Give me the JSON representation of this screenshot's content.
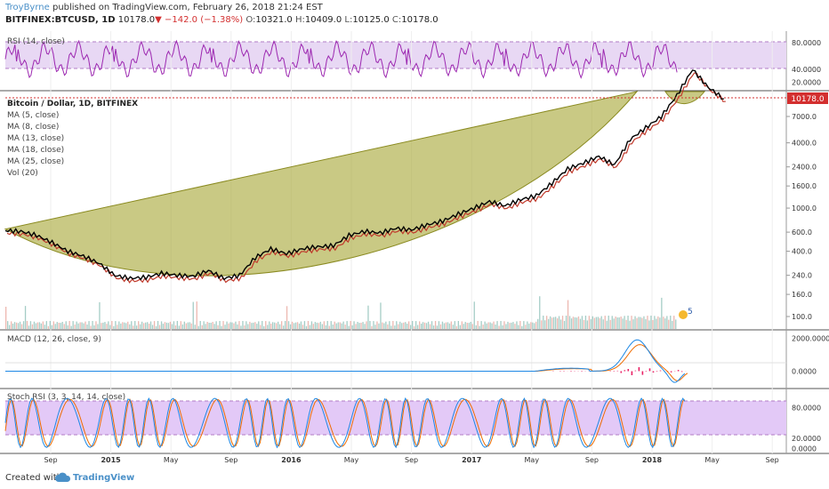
{
  "header": {
    "author": "TroyByrne",
    "published": "published on TradingView.com, February 26, 2018 21:24 EST",
    "symbol": "BITFINEX:BTCUSD, 1D",
    "last": "10178.0",
    "change_arrow": "▼",
    "change": "−142.0 (−1.38%)",
    "o_label": "O:",
    "o_value": "10321.0",
    "h_label": "H:",
    "h_value": "10409.0",
    "l_label": "L:",
    "l_value": "10125.0",
    "c_label": "C:",
    "c_value": "10178.0"
  },
  "legend": {
    "rsi": "RSI (14, close)",
    "main_title": "Bitcoin / Dollar, 1D, BITFINEX",
    "ma5": "MA (5, close)",
    "ma8": "MA (8, close)",
    "ma13": "MA (13, close)",
    "ma18": "MA (18, close)",
    "ma25": "MA (25, close)",
    "vol": "Vol (20)",
    "macd": "MACD (12, 26, close, 9)",
    "stoch": "Stoch RSI (3, 3, 14, 14, close)"
  },
  "price_badge": "10178.0",
  "event_badge": "5",
  "footer": {
    "created_with": "Created with",
    "brand": "TradingView"
  },
  "colors": {
    "price_line": "#000000",
    "ma_red": "#c0392b",
    "cup_fill": "#a8a838",
    "rsi_line": "#9c27b0",
    "rsi_band": "#e8d8f4",
    "stoch_band": "#e3c9f7",
    "volume": "#7fb8ae",
    "macd_line": "#1e88e5",
    "signal_line": "#ef6c00",
    "hist": "#e91e63",
    "price_badge_bg": "#d32f2f",
    "brand_blue": "#4a90c8"
  },
  "chart_data": [
    {
      "type": "line",
      "pane": "RSI",
      "y_ticks": [
        "80.0000",
        "40.0000",
        "20.0000"
      ],
      "ylim": [
        10,
        95
      ],
      "bands": [
        30,
        70
      ]
    },
    {
      "type": "line",
      "pane": "price",
      "log_scale": true,
      "y_ticks": [
        "7000.0",
        "4000.0",
        "2400.0",
        "1600.0",
        "1000.0",
        "600.0",
        "400.0",
        "240.0",
        "160.0",
        "100.0"
      ],
      "x_ticks": [
        "Sep",
        "2015",
        "May",
        "Sep",
        "2016",
        "May",
        "Sep",
        "2017",
        "May",
        "Sep",
        "2018",
        "May",
        "Sep"
      ],
      "series": [
        {
          "values_t": [
            0,
            0.02,
            0.04,
            0.06,
            0.08,
            0.1,
            0.12,
            0.14,
            0.16,
            0.18,
            0.2,
            0.22,
            0.24,
            0.26,
            0.28,
            0.3,
            0.32,
            0.34,
            0.36,
            0.38,
            0.4,
            0.42,
            0.44,
            0.46,
            0.48,
            0.5,
            0.52,
            0.54,
            0.56,
            0.58,
            0.6,
            0.62,
            0.64,
            0.66,
            0.68,
            0.7,
            0.72,
            0.74,
            0.76,
            0.78,
            0.8,
            0.82,
            0.84,
            0.86,
            0.88,
            0.9,
            0.92
          ],
          "values": [
            620,
            610,
            560,
            480,
            400,
            360,
            310,
            240,
            225,
            230,
            250,
            240,
            235,
            265,
            225,
            240,
            350,
            420,
            380,
            420,
            440,
            450,
            560,
            610,
            590,
            650,
            630,
            700,
            760,
            880,
            1000,
            1150,
            1050,
            1200,
            1300,
            1700,
            2300,
            2600,
            3000,
            2500,
            4300,
            5500,
            7000,
            11000,
            19000,
            13000,
            10178
          ]
        }
      ]
    },
    {
      "type": "line",
      "pane": "MACD",
      "y_ticks": [
        "2000.0000",
        "0.0000"
      ],
      "ylim": [
        -1000,
        2400
      ]
    },
    {
      "type": "line",
      "pane": "Stoch RSI",
      "y_ticks": [
        "80.0000",
        "20.0000",
        "0.0000"
      ],
      "ylim": [
        -8,
        112
      ],
      "bands": [
        20,
        80
      ]
    }
  ]
}
